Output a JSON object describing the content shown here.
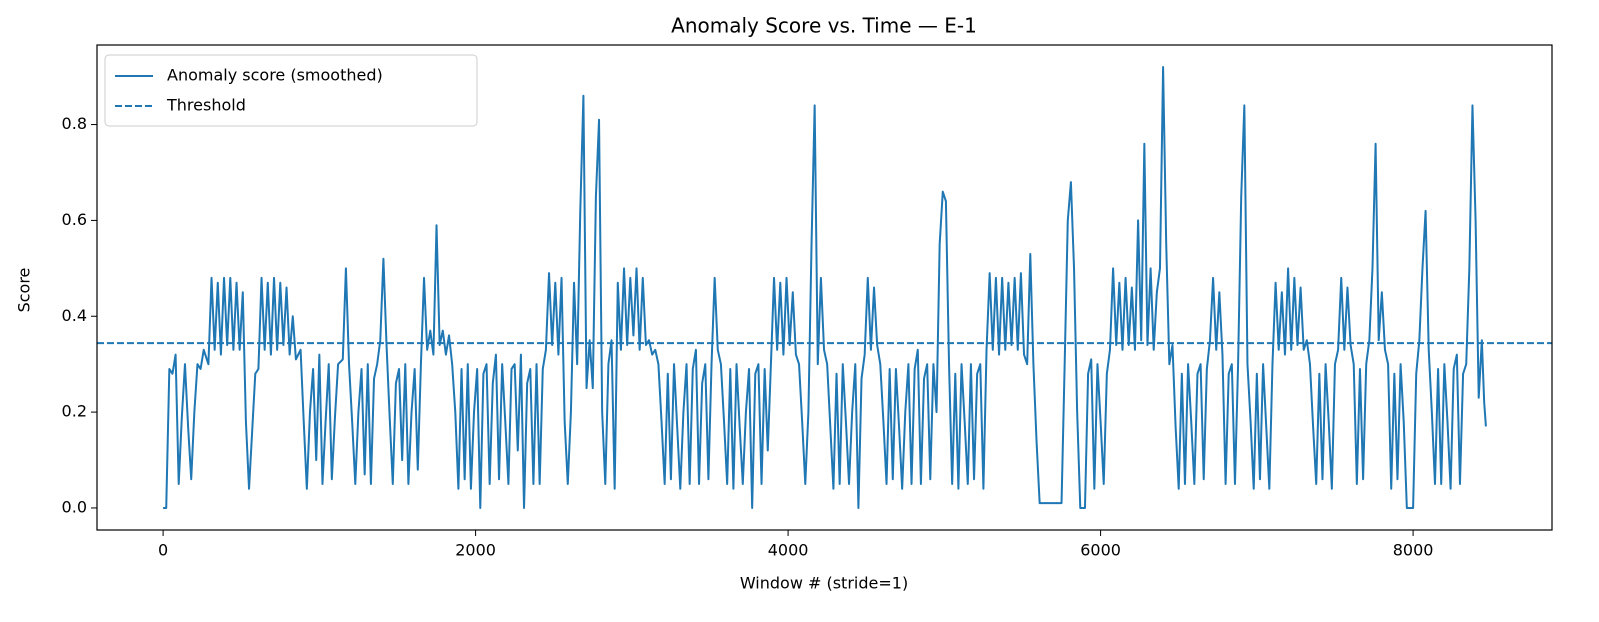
{
  "chart_data": {
    "type": "line",
    "title": "Anomaly Score vs. Time — E-1",
    "xlabel": "Window # (stride=1)",
    "ylabel": "Score",
    "xlim": [
      -423,
      8889
    ],
    "ylim": [
      -0.046,
      0.966
    ],
    "xticks": [
      0,
      2000,
      4000,
      6000,
      8000
    ],
    "yticks": [
      {
        "value": 0,
        "label": "0.0"
      },
      0.2,
      0.4,
      0.6,
      0.8
    ],
    "grid": false,
    "legend": "upper left",
    "threshold": {
      "name": "Threshold",
      "value": 0.344,
      "color": "#1f77b4",
      "linestyle": "dashed"
    },
    "series": [
      {
        "name": "Anomaly score (smoothed)",
        "color": "#1f77b4",
        "x": [
          0,
          20,
          40,
          60,
          80,
          100,
          120,
          140,
          160,
          180,
          200,
          220,
          240,
          260,
          290,
          310,
          330,
          350,
          370,
          390,
          410,
          430,
          450,
          470,
          490,
          510,
          530,
          550,
          570,
          590,
          610,
          630,
          650,
          670,
          690,
          710,
          730,
          750,
          770,
          790,
          810,
          830,
          850,
          880,
          900,
          920,
          940,
          960,
          980,
          1000,
          1020,
          1040,
          1060,
          1080,
          1100,
          1120,
          1150,
          1170,
          1190,
          1210,
          1230,
          1250,
          1270,
          1290,
          1310,
          1330,
          1350,
          1370,
          1390,
          1410,
          1430,
          1450,
          1470,
          1490,
          1510,
          1530,
          1550,
          1570,
          1590,
          1610,
          1630,
          1650,
          1670,
          1690,
          1710,
          1730,
          1750,
          1770,
          1790,
          1810,
          1830,
          1850,
          1870,
          1890,
          1910,
          1930,
          1950,
          1970,
          1990,
          2010,
          2030,
          2050,
          2070,
          2090,
          2110,
          2130,
          2150,
          2170,
          2190,
          2210,
          2230,
          2250,
          2270,
          2290,
          2310,
          2330,
          2350,
          2370,
          2390,
          2410,
          2430,
          2450,
          2470,
          2490,
          2510,
          2530,
          2550,
          2570,
          2590,
          2610,
          2630,
          2650,
          2670,
          2690,
          2710,
          2730,
          2750,
          2770,
          2790,
          2810,
          2830,
          2850,
          2870,
          2890,
          2910,
          2930,
          2950,
          2970,
          2990,
          3010,
          3030,
          3050,
          3070,
          3090,
          3110,
          3130,
          3150,
          3170,
          3190,
          3210,
          3230,
          3250,
          3270,
          3290,
          3310,
          3330,
          3350,
          3370,
          3390,
          3410,
          3430,
          3450,
          3470,
          3490,
          3510,
          3530,
          3550,
          3570,
          3590,
          3610,
          3630,
          3650,
          3670,
          3690,
          3710,
          3730,
          3750,
          3770,
          3790,
          3810,
          3830,
          3850,
          3870,
          3890,
          3910,
          3930,
          3950,
          3970,
          3990,
          4010,
          4030,
          4050,
          4070,
          4090,
          4110,
          4130,
          4150,
          4170,
          4190,
          4210,
          4230,
          4250,
          4270,
          4290,
          4310,
          4330,
          4350,
          4370,
          4390,
          4410,
          4430,
          4450,
          4470,
          4490,
          4510,
          4530,
          4550,
          4570,
          4590,
          4610,
          4630,
          4650,
          4670,
          4690,
          4710,
          4730,
          4750,
          4770,
          4790,
          4810,
          4830,
          4850,
          4870,
          4890,
          4910,
          4930,
          4950,
          4970,
          4990,
          5010,
          5030,
          5050,
          5070,
          5090,
          5110,
          5130,
          5150,
          5170,
          5190,
          5210,
          5230,
          5250,
          5270,
          5290,
          5310,
          5330,
          5350,
          5370,
          5390,
          5410,
          5430,
          5450,
          5470,
          5490,
          5510,
          5530,
          5550,
          5570,
          5590,
          5610,
          5700,
          5750,
          5770,
          5790,
          5810,
          5830,
          5850,
          5870,
          5900,
          5920,
          5940,
          5960,
          5980,
          6000,
          6020,
          6040,
          6060,
          6080,
          6100,
          6120,
          6140,
          6160,
          6180,
          6200,
          6220,
          6240,
          6260,
          6280,
          6300,
          6320,
          6340,
          6360,
          6380,
          6400,
          6420,
          6440,
          6460,
          6480,
          6500,
          6520,
          6540,
          6560,
          6580,
          6600,
          6620,
          6640,
          6660,
          6680,
          6700,
          6720,
          6740,
          6760,
          6780,
          6800,
          6820,
          6840,
          6860,
          6880,
          6900,
          6920,
          6940,
          6960,
          6980,
          7000,
          7020,
          7040,
          7060,
          7080,
          7100,
          7120,
          7140,
          7160,
          7180,
          7200,
          7220,
          7240,
          7260,
          7280,
          7300,
          7320,
          7340,
          7360,
          7380,
          7400,
          7420,
          7440,
          7460,
          7480,
          7500,
          7520,
          7540,
          7560,
          7580,
          7600,
          7620,
          7640,
          7660,
          7680,
          7700,
          7720,
          7740,
          7760,
          7780,
          7800,
          7820,
          7840,
          7860,
          7880,
          7900,
          7920,
          7940,
          7960,
          8000,
          8020,
          8040,
          8060,
          8080,
          8100,
          8120,
          8140,
          8160,
          8180,
          8200,
          8220,
          8240,
          8260,
          8280,
          8300,
          8320,
          8340,
          8360,
          8380,
          8400,
          8420,
          8440,
          8455,
          8466
        ],
        "values": [
          0,
          0,
          0.29,
          0.28,
          0.32,
          0.05,
          0.19,
          0.3,
          0.17,
          0.06,
          0.2,
          0.3,
          0.29,
          0.33,
          0.3,
          0.48,
          0.33,
          0.47,
          0.32,
          0.48,
          0.34,
          0.48,
          0.33,
          0.47,
          0.33,
          0.45,
          0.18,
          0.04,
          0.16,
          0.28,
          0.29,
          0.48,
          0.33,
          0.47,
          0.32,
          0.48,
          0.33,
          0.47,
          0.34,
          0.46,
          0.32,
          0.4,
          0.31,
          0.33,
          0.18,
          0.04,
          0.2,
          0.29,
          0.1,
          0.32,
          0.05,
          0.18,
          0.3,
          0.06,
          0.19,
          0.3,
          0.31,
          0.5,
          0.3,
          0.18,
          0.05,
          0.2,
          0.29,
          0.07,
          0.3,
          0.05,
          0.27,
          0.3,
          0.35,
          0.52,
          0.34,
          0.19,
          0.05,
          0.26,
          0.29,
          0.1,
          0.3,
          0.05,
          0.2,
          0.29,
          0.08,
          0.3,
          0.48,
          0.33,
          0.37,
          0.32,
          0.59,
          0.34,
          0.37,
          0.32,
          0.36,
          0.3,
          0.2,
          0.04,
          0.29,
          0.06,
          0.3,
          0.04,
          0.2,
          0.29,
          0,
          0.28,
          0.3,
          0.05,
          0.26,
          0.32,
          0.06,
          0.3,
          0.18,
          0.05,
          0.29,
          0.3,
          0.12,
          0.32,
          0,
          0.26,
          0.29,
          0.05,
          0.3,
          0.05,
          0.29,
          0.33,
          0.49,
          0.34,
          0.47,
          0.32,
          0.48,
          0.18,
          0.05,
          0.2,
          0.47,
          0.3,
          0.62,
          0.86,
          0.25,
          0.35,
          0.25,
          0.65,
          0.81,
          0.2,
          0.05,
          0.3,
          0.35,
          0.04,
          0.47,
          0.33,
          0.5,
          0.34,
          0.48,
          0.36,
          0.5,
          0.33,
          0.48,
          0.34,
          0.35,
          0.32,
          0.33,
          0.3,
          0.18,
          0.05,
          0.28,
          0.06,
          0.3,
          0.17,
          0.04,
          0.2,
          0.3,
          0.05,
          0.29,
          0.33,
          0.05,
          0.26,
          0.3,
          0.06,
          0.3,
          0.48,
          0.33,
          0.3,
          0.18,
          0.05,
          0.29,
          0.04,
          0.3,
          0.17,
          0.05,
          0.2,
          0.29,
          0,
          0.28,
          0.3,
          0.05,
          0.29,
          0.12,
          0.3,
          0.48,
          0.33,
          0.47,
          0.32,
          0.48,
          0.34,
          0.45,
          0.32,
          0.3,
          0.18,
          0.05,
          0.2,
          0.55,
          0.84,
          0.3,
          0.48,
          0.33,
          0.3,
          0.17,
          0.04,
          0.28,
          0.05,
          0.3,
          0.18,
          0.05,
          0.2,
          0.3,
          0,
          0.27,
          0.32,
          0.48,
          0.33,
          0.46,
          0.34,
          0.3,
          0.18,
          0.05,
          0.29,
          0.06,
          0.29,
          0.17,
          0.04,
          0.2,
          0.3,
          0.05,
          0.29,
          0.33,
          0.05,
          0.27,
          0.3,
          0.06,
          0.3,
          0.2,
          0.55,
          0.66,
          0.64,
          0.3,
          0.05,
          0.28,
          0.04,
          0.3,
          0.18,
          0.05,
          0.3,
          0.06,
          0.28,
          0.3,
          0.04,
          0.33,
          0.49,
          0.33,
          0.48,
          0.32,
          0.48,
          0.33,
          0.47,
          0.34,
          0.48,
          0.33,
          0.49,
          0.32,
          0.3,
          0.53,
          0.3,
          0.14,
          0.01,
          0.01,
          0.01,
          0.3,
          0.6,
          0.68,
          0.5,
          0.2,
          0,
          0,
          0.28,
          0.31,
          0.04,
          0.3,
          0.18,
          0.05,
          0.28,
          0.33,
          0.5,
          0.34,
          0.47,
          0.33,
          0.48,
          0.34,
          0.46,
          0.33,
          0.6,
          0.35,
          0.76,
          0.34,
          0.5,
          0.33,
          0.45,
          0.5,
          0.92,
          0.55,
          0.3,
          0.34,
          0.17,
          0.04,
          0.28,
          0.05,
          0.3,
          0.18,
          0.05,
          0.28,
          0.3,
          0.06,
          0.29,
          0.35,
          0.48,
          0.33,
          0.45,
          0.32,
          0.05,
          0.28,
          0.3,
          0.05,
          0.3,
          0.65,
          0.84,
          0.3,
          0.18,
          0.04,
          0.28,
          0.06,
          0.3,
          0.17,
          0.04,
          0.3,
          0.47,
          0.33,
          0.45,
          0.32,
          0.5,
          0.33,
          0.48,
          0.34,
          0.46,
          0.33,
          0.35,
          0.3,
          0.17,
          0.05,
          0.28,
          0.06,
          0.3,
          0.18,
          0.04,
          0.3,
          0.33,
          0.48,
          0.33,
          0.46,
          0.34,
          0.3,
          0.05,
          0.29,
          0.06,
          0.3,
          0.35,
          0.5,
          0.76,
          0.35,
          0.45,
          0.33,
          0.3,
          0.04,
          0.28,
          0.06,
          0.3,
          0.18,
          0,
          0,
          0.28,
          0.35,
          0.5,
          0.62,
          0.33,
          0.2,
          0.05,
          0.29,
          0.05,
          0.3,
          0.18,
          0.04,
          0.29,
          0.32,
          0.05,
          0.28,
          0.3,
          0.5,
          0.84,
          0.6,
          0.23,
          0.35,
          0.22,
          0.17
        ]
      }
    ]
  }
}
